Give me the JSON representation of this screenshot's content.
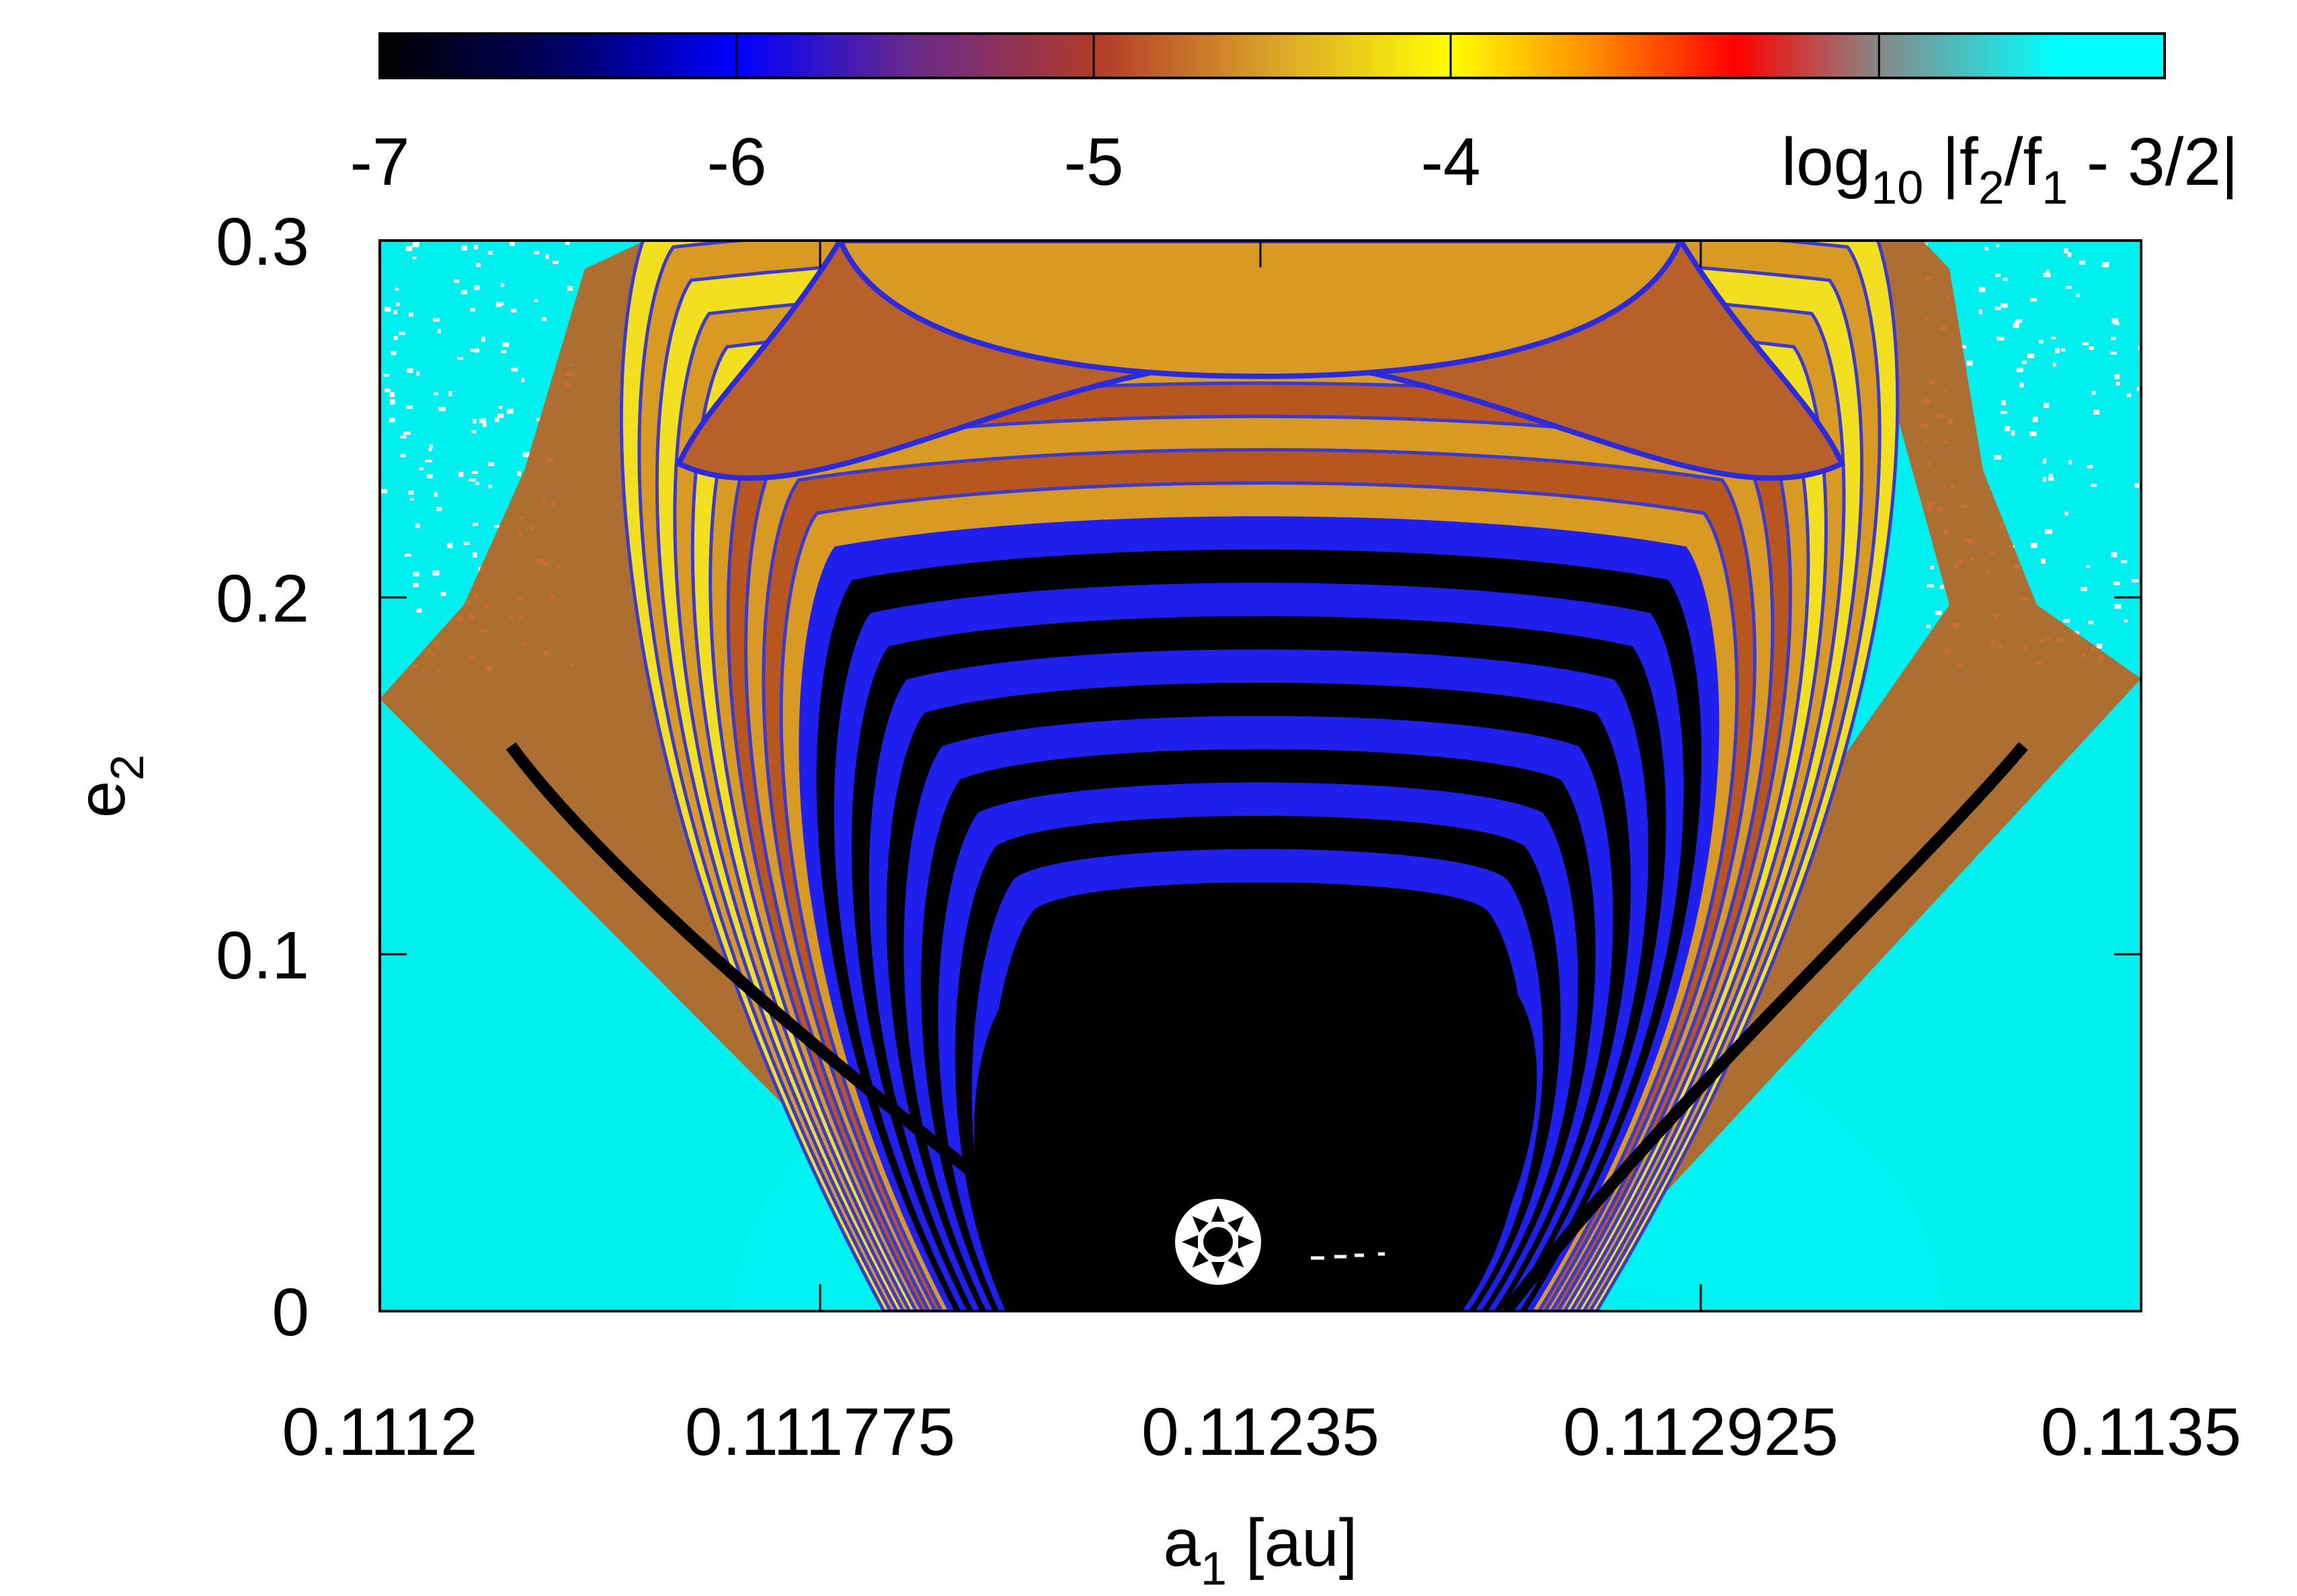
{
  "chart_data": {
    "type": "heatmap",
    "xlabel": {
      "base": "a",
      "sub": "1",
      "rest": " [au]"
    },
    "ylabel": {
      "base": "e",
      "sub": "2"
    },
    "colorbar_label": {
      "pre": "log",
      "pre_sub": "10",
      "p1": " |f",
      "s1": "2",
      "p2": "/f",
      "s2": "1",
      "p3": " - 3/2|"
    },
    "xlim": [
      0.1112,
      0.1135
    ],
    "ylim": [
      0,
      0.3
    ],
    "x_ticks": [
      0.1112,
      0.111775,
      0.11235,
      0.112925,
      0.1135
    ],
    "x_tick_labels": [
      "0.1112",
      "0.111775",
      "0.11235",
      "0.112925",
      "0.1135"
    ],
    "y_ticks": [
      0,
      0.1,
      0.2,
      0.3
    ],
    "y_tick_labels": [
      "0",
      "0.1",
      "0.2",
      "0.3"
    ],
    "colorbar_range": [
      -7,
      -2
    ],
    "colorbar_ticks": [
      -7,
      -6,
      -5,
      -4
    ],
    "colorbar_tick_labels": [
      "-7",
      "-6",
      "-5",
      "-4"
    ],
    "colormap": [
      {
        "v": -7.0,
        "color": "#000000"
      },
      {
        "v": -6.5,
        "color": "#000060"
      },
      {
        "v": -6.0,
        "color": "#0000ff"
      },
      {
        "v": -5.5,
        "color": "#6a2a88"
      },
      {
        "v": -5.0,
        "color": "#b13a2a"
      },
      {
        "v": -4.5,
        "color": "#d9a32a"
      },
      {
        "v": -4.0,
        "color": "#ffff00"
      },
      {
        "v": -3.6,
        "color": "#ff8c00"
      },
      {
        "v": -3.2,
        "color": "#ff0000"
      },
      {
        "v": -2.8,
        "color": "#888888"
      },
      {
        "v": -2.3,
        "color": "#00ffff"
      },
      {
        "v": -2.0,
        "color": "#00ffff"
      }
    ],
    "resonance_center": {
      "a": 0.11227,
      "e": 0.019
    },
    "colors": {
      "background_region": "#00f0f0",
      "core_region": "#000000",
      "band_blue": "#2020ee",
      "band_gold": "#d89a22",
      "band_yellow": "#f2e020"
    }
  }
}
